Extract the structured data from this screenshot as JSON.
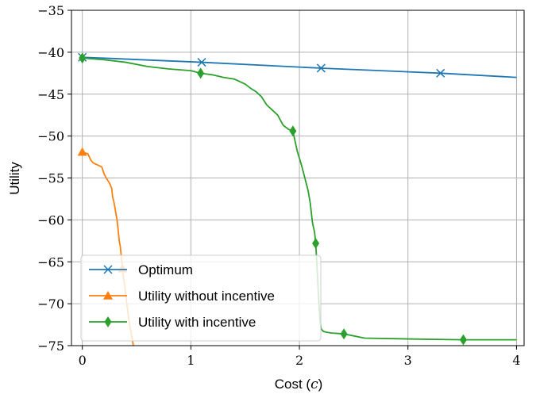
{
  "chart_data": {
    "type": "line",
    "xlabel": "Cost (",
    "xlabel_var": "c",
    "xlabel_close": ")",
    "ylabel": "Utility",
    "xlim": [
      -0.1,
      4.07
    ],
    "ylim": [
      -75,
      -35
    ],
    "xticks": [
      0,
      1,
      2,
      3,
      4
    ],
    "yticks": [
      -75,
      -70,
      -65,
      -60,
      -55,
      -50,
      -45,
      -40,
      -35
    ],
    "grid": true,
    "legend_position": "lower-left",
    "series": [
      {
        "name": "Optimum",
        "color": "#1f77b4",
        "marker": "x",
        "x": [
          0,
          1.1,
          2.2,
          3.3,
          4.0
        ],
        "y": [
          -40.6,
          -41.2,
          -41.9,
          -42.5,
          -43.0
        ],
        "marker_x": [
          0,
          1.1,
          2.2,
          3.3
        ]
      },
      {
        "name": "Utility without incentive",
        "color": "#ff7f0e",
        "marker": "triangle",
        "x": [
          0,
          0.02,
          0.05,
          0.08,
          0.1,
          0.15,
          0.18,
          0.2,
          0.22,
          0.25,
          0.27,
          0.28,
          0.29,
          0.3,
          0.31,
          0.32,
          0.33,
          0.34,
          0.35,
          0.36,
          0.37,
          0.38,
          0.39,
          0.4,
          0.41,
          0.42,
          0.43,
          0.44,
          0.45,
          0.46,
          0.47
        ],
        "y": [
          -51.9,
          -52.0,
          -52.1,
          -52.9,
          -53.2,
          -53.5,
          -53.7,
          -54.5,
          -55.0,
          -55.6,
          -56.2,
          -57.3,
          -57.8,
          -58.5,
          -59.3,
          -60.0,
          -61.2,
          -62.5,
          -63.2,
          -64.5,
          -65.8,
          -67.0,
          -67.8,
          -69.0,
          -70.0,
          -71.0,
          -72.0,
          -72.8,
          -73.5,
          -74.2,
          -75.0
        ],
        "marker_x": [
          0,
          0.37
        ]
      },
      {
        "name": "Utility with incentive",
        "color": "#2ca02c",
        "marker": "diamond",
        "x": [
          0,
          0.2,
          0.4,
          0.6,
          0.8,
          1.0,
          1.09,
          1.2,
          1.3,
          1.4,
          1.5,
          1.55,
          1.6,
          1.65,
          1.7,
          1.75,
          1.8,
          1.85,
          1.9,
          1.94,
          1.98,
          2.02,
          2.05,
          2.08,
          2.1,
          2.12,
          2.14,
          2.15,
          2.16,
          2.17,
          2.18,
          2.19,
          2.2,
          2.22,
          2.25,
          2.3,
          2.41,
          2.6,
          3.0,
          3.51,
          4.0
        ],
        "y": [
          -40.7,
          -40.9,
          -41.2,
          -41.7,
          -42.0,
          -42.2,
          -42.5,
          -42.7,
          -43.0,
          -43.2,
          -43.8,
          -44.3,
          -44.7,
          -45.3,
          -46.3,
          -46.9,
          -47.5,
          -48.7,
          -49.2,
          -49.4,
          -51.8,
          -53.5,
          -55.0,
          -56.5,
          -58.0,
          -60.3,
          -61.5,
          -62.8,
          -65.0,
          -67.5,
          -70.0,
          -72.0,
          -73.0,
          -73.3,
          -73.4,
          -73.5,
          -73.6,
          -74.1,
          -74.2,
          -74.3,
          -74.3
        ],
        "marker_x": [
          0,
          1.09,
          1.94,
          2.15,
          2.41,
          3.51
        ]
      }
    ]
  }
}
